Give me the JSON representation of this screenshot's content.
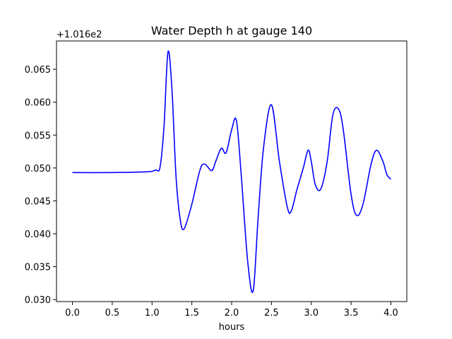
{
  "chart_data": {
    "type": "line",
    "title": "Water Depth h at gauge 140",
    "xlabel": "hours",
    "ylabel": "",
    "y_offset_label": "+1.016e2",
    "xlim": [
      -0.2,
      4.2
    ],
    "ylim": [
      0.0297,
      0.0693
    ],
    "x_ticks": [
      0.0,
      0.5,
      1.0,
      1.5,
      2.0,
      2.5,
      3.0,
      3.5,
      4.0
    ],
    "x_tick_labels": [
      "0.0",
      "0.5",
      "1.0",
      "1.5",
      "2.0",
      "2.5",
      "3.0",
      "3.5",
      "4.0"
    ],
    "y_ticks": [
      0.03,
      0.035,
      0.04,
      0.045,
      0.05,
      0.055,
      0.06,
      0.065
    ],
    "y_tick_labels": [
      "0.030",
      "0.035",
      "0.040",
      "0.045",
      "0.050",
      "0.055",
      "0.060",
      "0.065"
    ],
    "grid": false,
    "series": [
      {
        "color": "#0000ff",
        "x": [
          0.0,
          0.5,
          0.9,
          1.0,
          1.05,
          1.1,
          1.15,
          1.2,
          1.25,
          1.3,
          1.35,
          1.4,
          1.5,
          1.6,
          1.66,
          1.75,
          1.8,
          1.87,
          1.93,
          2.0,
          2.06,
          2.12,
          2.2,
          2.27,
          2.33,
          2.4,
          2.5,
          2.6,
          2.7,
          2.75,
          2.82,
          2.9,
          2.96,
          3.0,
          3.05,
          3.12,
          3.2,
          3.27,
          3.34,
          3.4,
          3.5,
          3.57,
          3.65,
          3.75,
          3.82,
          3.9,
          3.95,
          4.0
        ],
        "values": [
          0.0493,
          0.0493,
          0.0494,
          0.0495,
          0.0497,
          0.0501,
          0.0562,
          0.0676,
          0.062,
          0.049,
          0.0425,
          0.0407,
          0.0445,
          0.0496,
          0.0506,
          0.0496,
          0.051,
          0.053,
          0.0523,
          0.0558,
          0.0572,
          0.049,
          0.036,
          0.0313,
          0.042,
          0.053,
          0.0596,
          0.051,
          0.044,
          0.0435,
          0.0467,
          0.05,
          0.0527,
          0.051,
          0.0475,
          0.0468,
          0.051,
          0.058,
          0.059,
          0.056,
          0.046,
          0.0428,
          0.0445,
          0.0505,
          0.0527,
          0.051,
          0.049,
          0.0483
        ]
      }
    ]
  }
}
